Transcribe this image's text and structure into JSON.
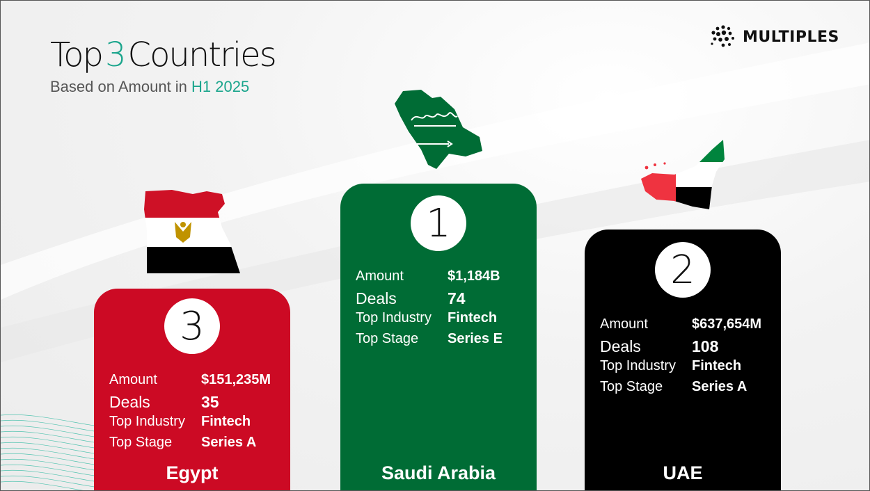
{
  "header": {
    "title_part1": "Top",
    "title_number": "3",
    "title_part2": "Countries",
    "subtitle_part1": "Based on Amount in",
    "subtitle_highlight": "H1 2025"
  },
  "brand": {
    "name": "MULTIPLES"
  },
  "colors": {
    "accent": "#1aa58c",
    "egypt": "#cc0a24",
    "saudi": "#006c35",
    "uae": "#000000"
  },
  "labels": {
    "amount": "Amount",
    "deals": "Deals",
    "industry": "Top Industry",
    "stage": "Top Stage"
  },
  "countries": {
    "saudi": {
      "rank": "1",
      "name": "Saudi Arabia",
      "amount": "$1,184B",
      "deals": "74",
      "industry": "Fintech",
      "stage": "Series E",
      "flag_icon": "saudi-arabia-map-flag-icon"
    },
    "uae": {
      "rank": "2",
      "name": "UAE",
      "amount": "$637,654M",
      "deals": "108",
      "industry": "Fintech",
      "stage": "Series A",
      "flag_icon": "uae-map-flag-icon"
    },
    "egypt": {
      "rank": "3",
      "name": "Egypt",
      "amount": "$151,235M",
      "deals": "35",
      "industry": "Fintech",
      "stage": "Series A",
      "flag_icon": "egypt-map-flag-icon"
    }
  }
}
